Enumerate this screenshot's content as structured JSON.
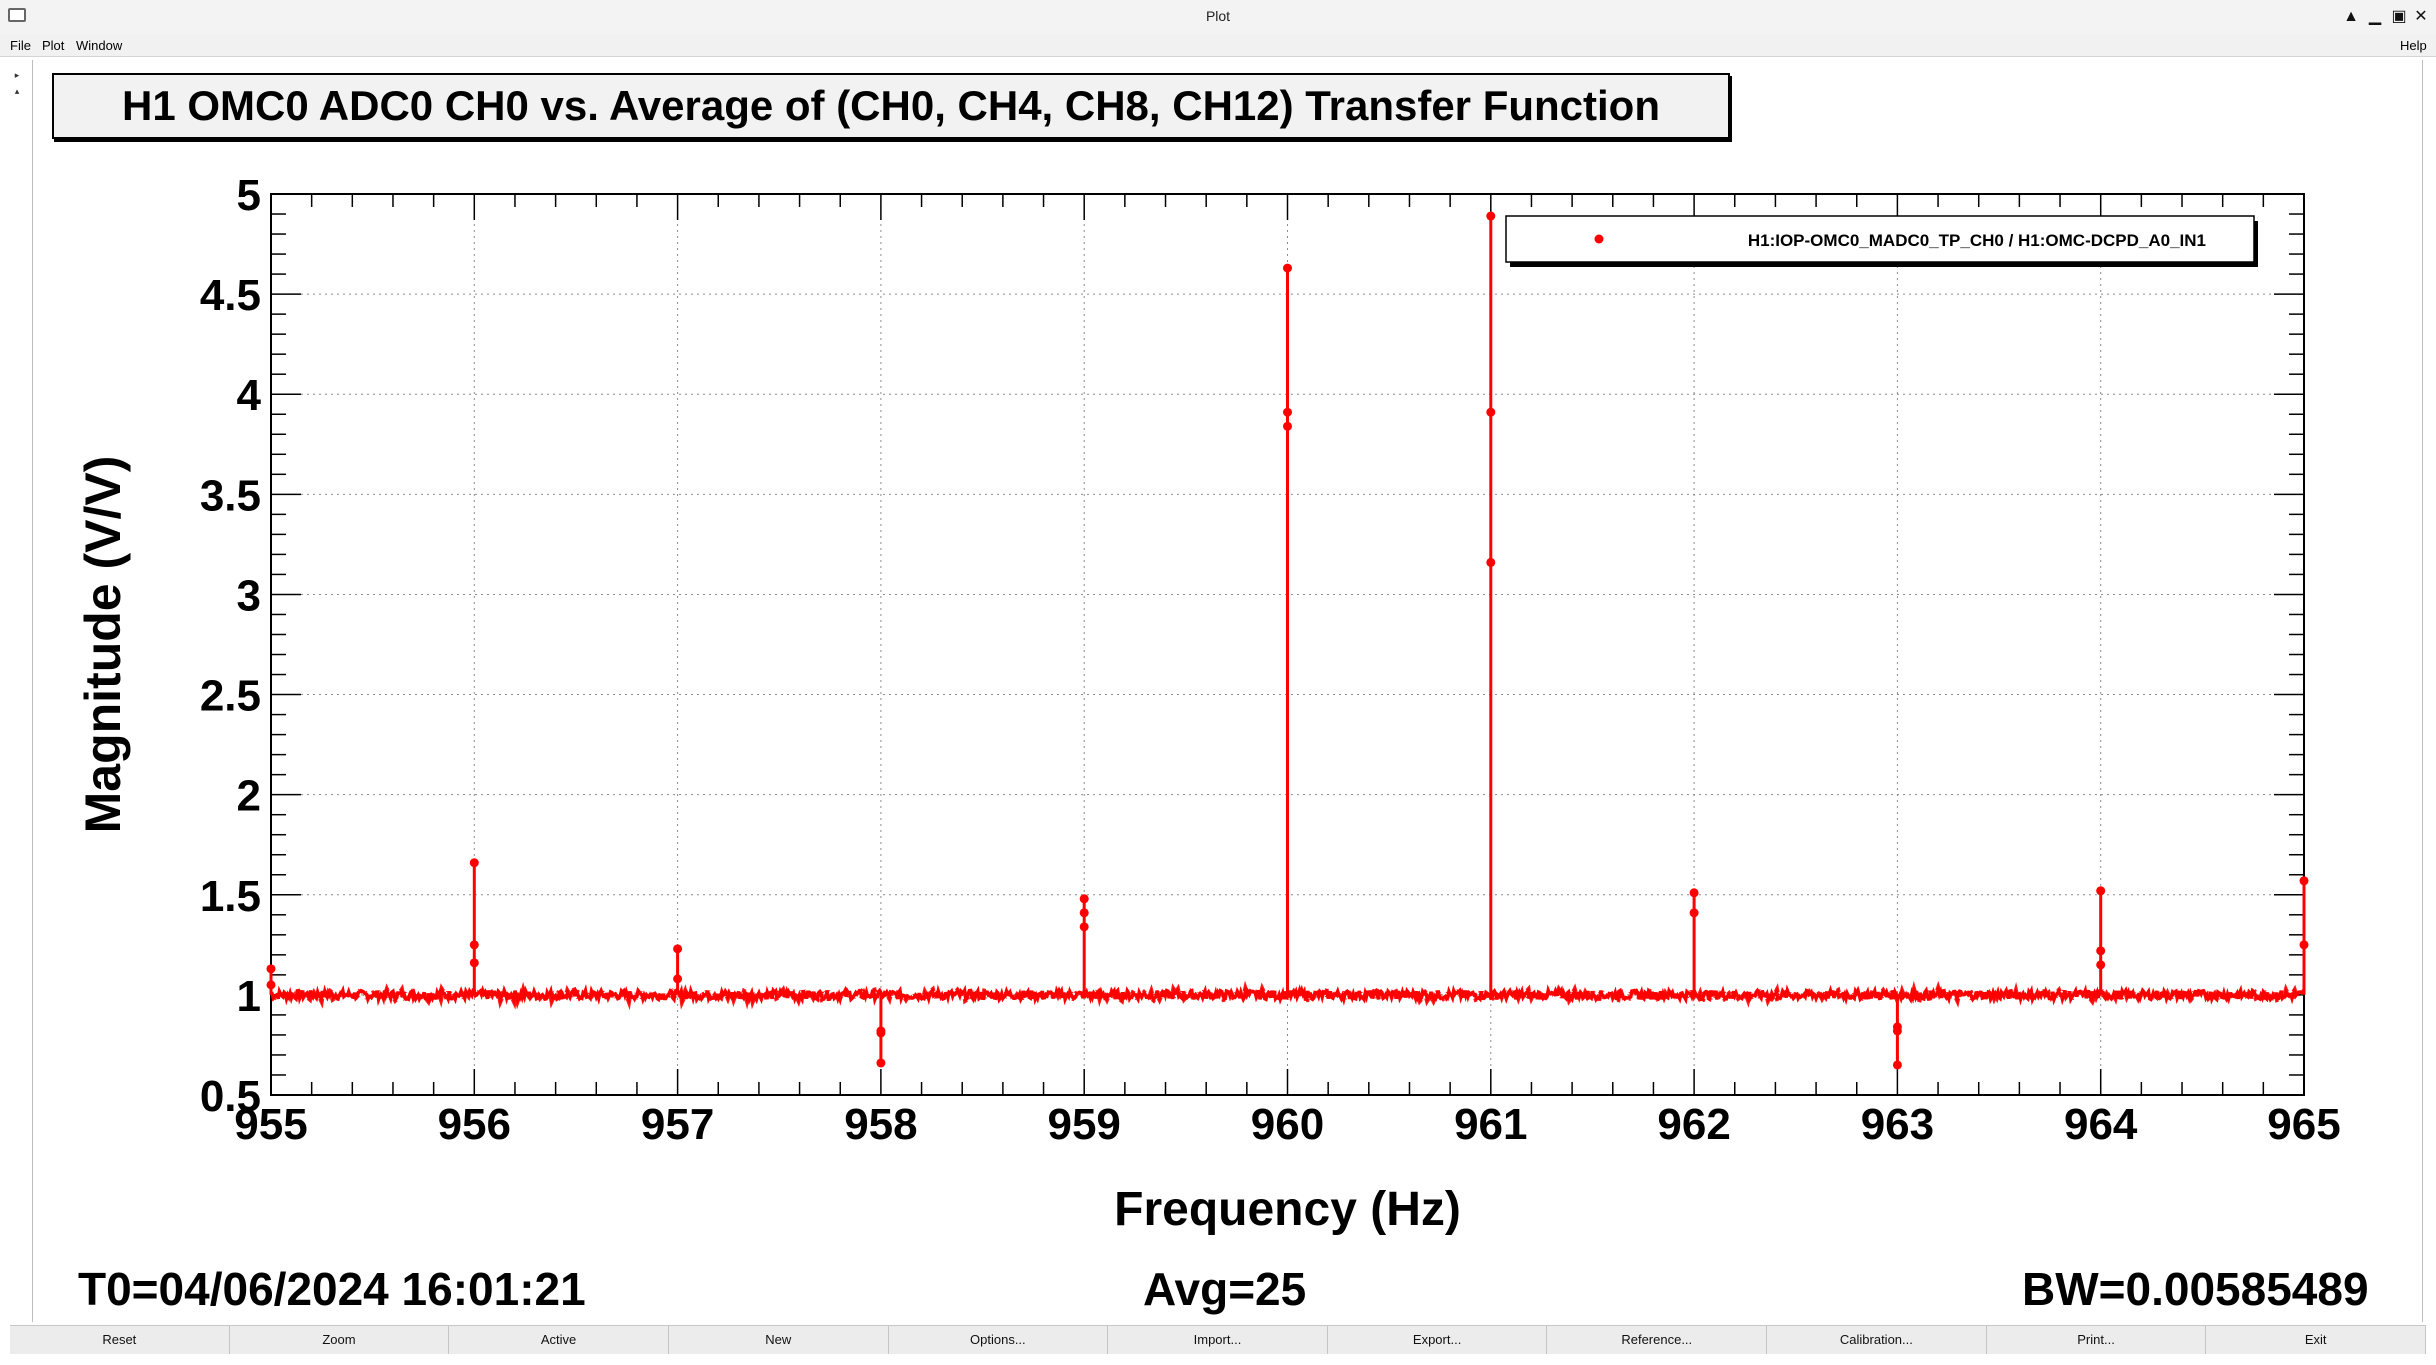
{
  "window": {
    "title": "Plot",
    "controls": [
      "▲",
      "▁",
      "▣",
      "✕"
    ]
  },
  "menu": {
    "file": "File",
    "plot": "Plot",
    "window": "Window",
    "help": "Help"
  },
  "plot": {
    "title": "H1 OMC0 ADC0 CH0 vs. Average of (CH0, CH4, CH8, CH12) Transfer Function",
    "info": {
      "t0": "T0=04/06/2024 16:01:21",
      "avg": "Avg=25",
      "bw": "BW=0.00585489"
    }
  },
  "chart_data": {
    "type": "line",
    "xlabel": "Frequency (Hz)",
    "ylabel": "Magnitude (V/V)",
    "xlim": [
      955,
      965
    ],
    "ylim": [
      0.5,
      5
    ],
    "xticks": [
      955,
      956,
      957,
      958,
      959,
      960,
      961,
      962,
      963,
      964,
      965
    ],
    "xtick_labels": [
      "955",
      "956",
      "957",
      "958",
      "959",
      "960",
      "961",
      "962",
      "963",
      "964",
      "965"
    ],
    "yticks": [
      0.5,
      1,
      1.5,
      2,
      2.5,
      3,
      3.5,
      4,
      4.5,
      5
    ],
    "ytick_labels": [
      "0.5",
      "1",
      "1.5",
      "2",
      "2.5",
      "3",
      "3.5",
      "4",
      "4.5",
      "5"
    ],
    "grid": true,
    "legend_position": "top-right",
    "series": [
      {
        "name": "H1:IOP-OMC0_MADC0_TP_CH0 / H1:OMC-DCPD_A0_IN1",
        "color": "#ff0000",
        "baseline": 1.0,
        "x": [
          955.0,
          955.0,
          956.0,
          956.0,
          956.0,
          957.0,
          957.0,
          958.0,
          958.0,
          958.0,
          959.0,
          959.0,
          959.0,
          960.0,
          960.0,
          960.0,
          961.0,
          961.0,
          961.0,
          962.0,
          962.0,
          963.0,
          963.0,
          963.0,
          964.0,
          964.0,
          964.0,
          965.0,
          965.0
        ],
        "y": [
          1.13,
          1.05,
          1.66,
          1.25,
          1.16,
          1.23,
          1.08,
          0.82,
          0.81,
          0.66,
          1.48,
          1.41,
          1.34,
          4.63,
          3.91,
          3.84,
          4.89,
          3.91,
          3.16,
          1.51,
          1.41,
          0.84,
          0.82,
          0.65,
          1.52,
          1.22,
          1.15,
          1.57,
          1.25
        ]
      }
    ]
  },
  "buttons": [
    "Reset",
    "Zoom",
    "Active",
    "New",
    "Options...",
    "Import...",
    "Export...",
    "Reference...",
    "Calibration...",
    "Print...",
    "Exit"
  ]
}
